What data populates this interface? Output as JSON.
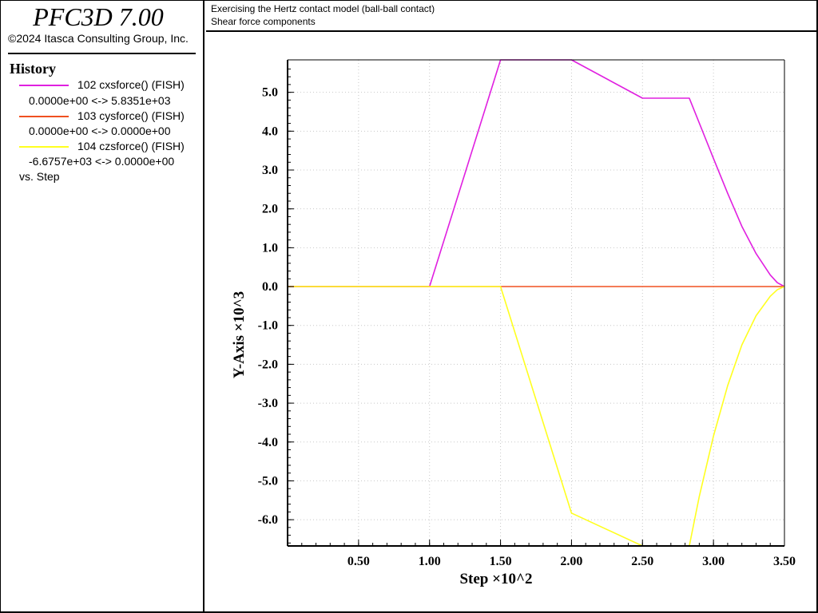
{
  "app": {
    "title": "PFC3D 7.00",
    "copyright": "©2024 Itasca Consulting Group, Inc."
  },
  "history": {
    "title": "History",
    "entries": [
      {
        "label": "102 cxsforce() (FISH)",
        "range": "0.0000e+00 <->  5.8351e+03",
        "color": "#e020e0"
      },
      {
        "label": "103 cysforce() (FISH)",
        "range": "0.0000e+00 <->  0.0000e+00",
        "color": "#f05020"
      },
      {
        "label": "104 czsforce() (FISH)",
        "range": "-6.6757e+03 <->  0.0000e+00",
        "color": "#ffff20"
      }
    ],
    "vs_label": "vs. Step"
  },
  "caption": {
    "line1": "Exercising the Hertz contact model (ball-ball contact)",
    "line2": "Shear force components"
  },
  "chart_data": {
    "type": "line",
    "xlabel": "Step ×10^2",
    "ylabel": "Y-Axis ×10^3",
    "xlim": [
      0,
      3.5
    ],
    "ylim": [
      -6.6757,
      5.8351
    ],
    "x_ticks": [
      "0.50",
      "1.00",
      "1.50",
      "2.00",
      "2.50",
      "3.00",
      "3.50"
    ],
    "y_ticks": [
      "5.0",
      "4.0",
      "3.0",
      "2.0",
      "1.0",
      "0.0",
      "-1.0",
      "-2.0",
      "-3.0",
      "-4.0",
      "-5.0",
      "-6.0"
    ],
    "grid": true,
    "series": [
      {
        "name": "102 cxsforce() (FISH)",
        "color": "#e020e0",
        "x": [
          0,
          1.0,
          1.5,
          2.0,
          2.5,
          2.83,
          3.0,
          3.1,
          3.2,
          3.3,
          3.4,
          3.45,
          3.5
        ],
        "y": [
          0,
          0,
          5.8351,
          5.8351,
          4.85,
          4.85,
          3.3,
          2.4,
          1.55,
          0.85,
          0.3,
          0.1,
          0
        ]
      },
      {
        "name": "103 cysforce() (FISH)",
        "color": "#f05020",
        "x": [
          0,
          3.5
        ],
        "y": [
          0,
          0
        ]
      },
      {
        "name": "104 czsforce() (FISH)",
        "color": "#ffff20",
        "x": [
          0,
          1.5,
          2.0,
          2.5,
          2.83,
          2.9,
          3.0,
          3.1,
          3.2,
          3.3,
          3.4,
          3.45,
          3.5
        ],
        "y": [
          0,
          0,
          -5.83,
          -6.6757,
          -6.6757,
          -5.4,
          -3.85,
          -2.55,
          -1.5,
          -0.75,
          -0.25,
          -0.08,
          0
        ]
      }
    ]
  }
}
